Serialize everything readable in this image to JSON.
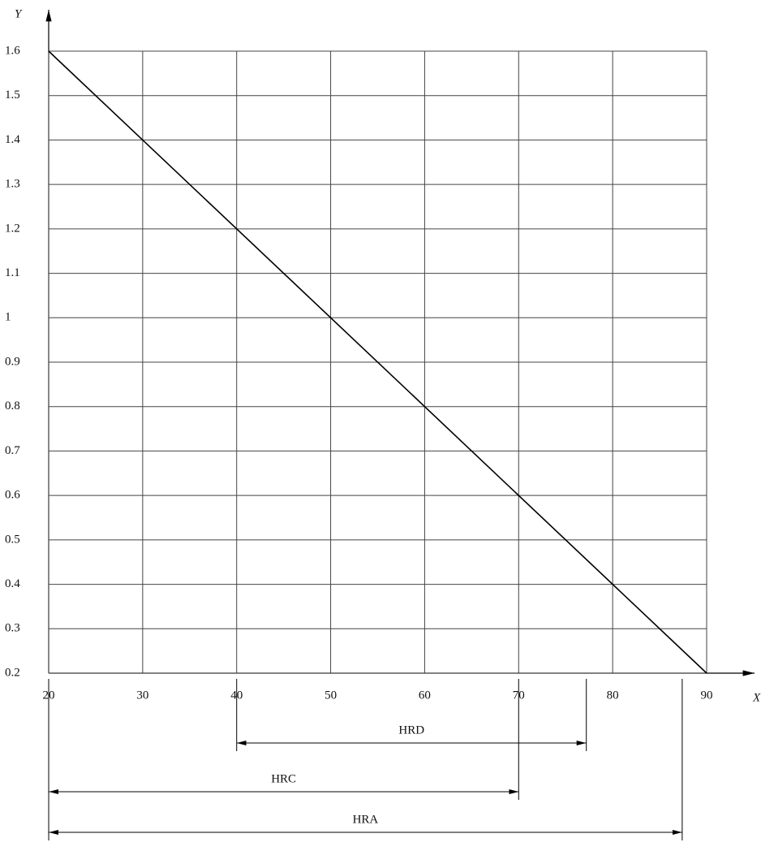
{
  "chart_data": {
    "type": "line",
    "x_label": "X",
    "y_label": "Y",
    "x": [
      20,
      90
    ],
    "series": [
      {
        "color": "#000000",
        "values": [
          1.6,
          0.2
        ]
      }
    ],
    "xlim": [
      20,
      90
    ],
    "ylim": [
      0.2,
      1.6
    ],
    "xticks": [
      20,
      30,
      40,
      50,
      60,
      70,
      80,
      90
    ],
    "yticks": [
      0.2,
      0.3,
      0.4,
      0.5,
      0.6,
      0.7,
      0.8,
      0.9,
      1,
      1.1,
      1.2,
      1.3,
      1.4,
      1.5,
      1.6
    ],
    "grid": true,
    "ranges": [
      {
        "label": "HRD",
        "from": 40,
        "to": 77.2
      },
      {
        "label": "HRC",
        "from": 20,
        "to": 70
      },
      {
        "label": "HRA",
        "from": 20,
        "to": 87.4
      }
    ]
  }
}
